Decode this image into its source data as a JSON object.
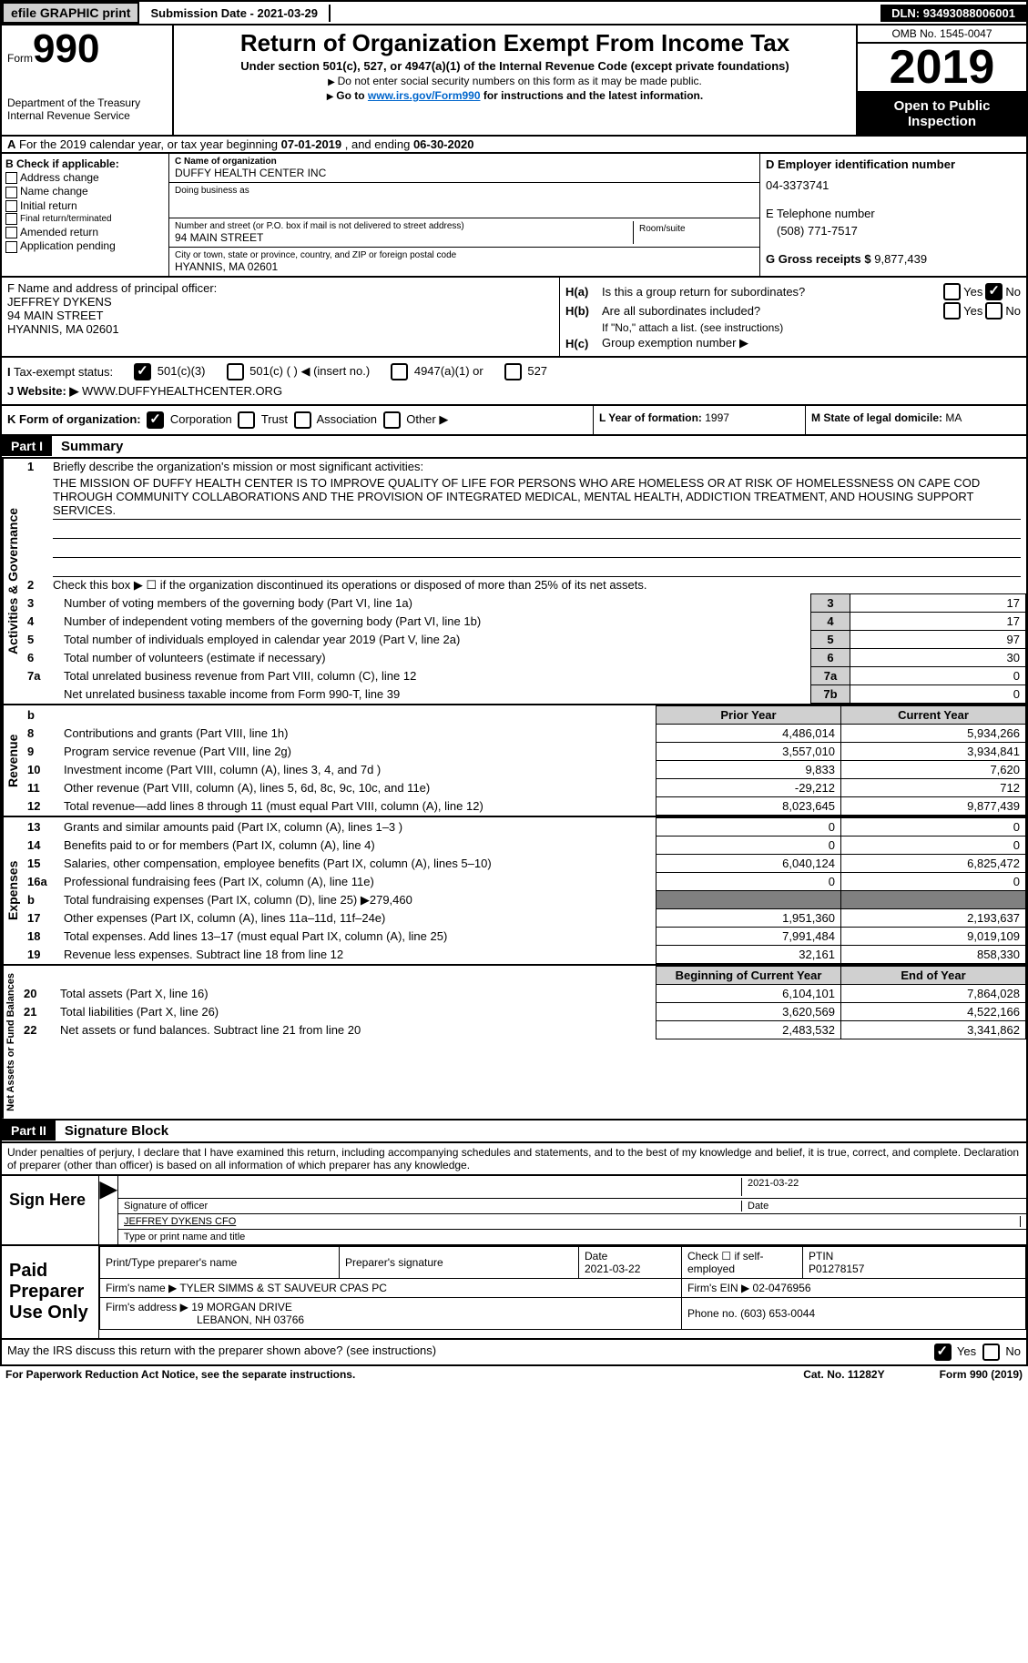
{
  "header": {
    "efile_btn": "efile GRAPHIC print",
    "submission_label": "Submission Date - ",
    "submission_date": "2021-03-29",
    "dln_label": "DLN: ",
    "dln": "93493088006001"
  },
  "form_box": {
    "form_word": "Form",
    "form_num": "990",
    "dept": "Department of the Treasury",
    "irs": "Internal Revenue Service"
  },
  "title": {
    "main": "Return of Organization Exempt From Income Tax",
    "sub": "Under section 501(c), 527, or 4947(a)(1) of the Internal Revenue Code (except private foundations)",
    "note1": "Do not enter social security numbers on this form as it may be made public.",
    "note2_pre": "Go to ",
    "note2_link": "www.irs.gov/Form990",
    "note2_post": " for instructions and the latest information."
  },
  "right_box": {
    "omb": "OMB No. 1545-0047",
    "year": "2019",
    "open": "Open to Public Inspection"
  },
  "period": {
    "text_pre": "For the 2019 calendar year, or tax year beginning ",
    "begin": "07-01-2019",
    "mid": " , and ending ",
    "end": "06-30-2020"
  },
  "col_b": {
    "header": "B Check if applicable:",
    "items": [
      "Address change",
      "Name change",
      "Initial return",
      "Final return/terminated",
      "Amended return",
      "Application pending"
    ]
  },
  "col_c": {
    "name_lbl": "C Name of organization",
    "name": "DUFFY HEALTH CENTER INC",
    "dba_lbl": "Doing business as",
    "dba": "",
    "addr_lbl": "Number and street (or P.O. box if mail is not delivered to street address)",
    "addr": "94 MAIN STREET",
    "room_lbl": "Room/suite",
    "city_lbl": "City or town, state or province, country, and ZIP or foreign postal code",
    "city": "HYANNIS, MA  02601"
  },
  "col_d": {
    "ein_lbl": "D Employer identification number",
    "ein": "04-3373741",
    "phone_lbl": "E Telephone number",
    "phone": "(508) 771-7517",
    "gross_lbl": "G Gross receipts $ ",
    "gross": "9,877,439"
  },
  "officer": {
    "lbl": "F  Name and address of principal officer:",
    "name": "JEFFREY DYKENS",
    "addr1": "94 MAIN STREET",
    "addr2": "HYANNIS, MA  02601"
  },
  "h_section": {
    "ha_lbl": "H(a)",
    "ha_text": "Is this a group return for subordinates?",
    "hb_lbl": "H(b)",
    "hb_text": "Are all subordinates included?",
    "hb_note": "If \"No,\" attach a list. (see instructions)",
    "hc_lbl": "H(c)",
    "hc_text": "Group exemption number ▶",
    "yes": "Yes",
    "no": "No"
  },
  "status": {
    "i_lbl": "I",
    "i_text": "Tax-exempt status:",
    "opts": [
      "501(c)(3)",
      "501(c) (  ) ◀ (insert no.)",
      "4947(a)(1) or",
      "527"
    ]
  },
  "website": {
    "j_lbl": "J",
    "j_text": "Website: ▶",
    "url": "WWW.DUFFYHEALTHCENTER.ORG"
  },
  "k_row": {
    "k_lbl": "K Form of organization:",
    "opts": [
      "Corporation",
      "Trust",
      "Association",
      "Other ▶"
    ],
    "l_lbl": "L Year of formation: ",
    "l_val": "1997",
    "m_lbl": "M State of legal domicile: ",
    "m_val": "MA"
  },
  "part1": {
    "hdr": "Part I",
    "title": "Summary",
    "line1_lbl": "1",
    "line1_text": "Briefly describe the organization's mission or most significant activities:",
    "mission": "THE MISSION OF DUFFY HEALTH CENTER IS TO IMPROVE QUALITY OF LIFE FOR PERSONS WHO ARE HOMELESS OR AT RISK OF HOMELESSNESS ON CAPE COD THROUGH COMMUNITY COLLABORATIONS AND THE PROVISION OF INTEGRATED MEDICAL, MENTAL HEALTH, ADDICTION TREATMENT, AND HOUSING SUPPORT SERVICES.",
    "line2_text": "Check this box ▶ ☐  if the organization discontinued its operations or disposed of more than 25% of its net assets.",
    "gov_label": "Activities & Governance",
    "rev_label": "Revenue",
    "exp_label": "Expenses",
    "net_label": "Net Assets or Fund Balances",
    "gov_lines": [
      {
        "n": "3",
        "d": "Number of voting members of the governing body (Part VI, line 1a)",
        "box": "3",
        "v": "17"
      },
      {
        "n": "4",
        "d": "Number of independent voting members of the governing body (Part VI, line 1b)",
        "box": "4",
        "v": "17"
      },
      {
        "n": "5",
        "d": "Total number of individuals employed in calendar year 2019 (Part V, line 2a)",
        "box": "5",
        "v": "97"
      },
      {
        "n": "6",
        "d": "Total number of volunteers (estimate if necessary)",
        "box": "6",
        "v": "30"
      },
      {
        "n": "7a",
        "d": "Total unrelated business revenue from Part VIII, column (C), line 12",
        "box": "7a",
        "v": "0"
      },
      {
        "n": "",
        "d": "Net unrelated business taxable income from Form 990-T, line 39",
        "box": "7b",
        "v": "0"
      }
    ],
    "col_hdrs": {
      "prior": "Prior Year",
      "current": "Current Year",
      "begin": "Beginning of Current Year",
      "end": "End of Year",
      "b": "b"
    },
    "rev_lines": [
      {
        "n": "8",
        "d": "Contributions and grants (Part VIII, line 1h)",
        "p": "4,486,014",
        "c": "5,934,266"
      },
      {
        "n": "9",
        "d": "Program service revenue (Part VIII, line 2g)",
        "p": "3,557,010",
        "c": "3,934,841"
      },
      {
        "n": "10",
        "d": "Investment income (Part VIII, column (A), lines 3, 4, and 7d )",
        "p": "9,833",
        "c": "7,620"
      },
      {
        "n": "11",
        "d": "Other revenue (Part VIII, column (A), lines 5, 6d, 8c, 9c, 10c, and 11e)",
        "p": "-29,212",
        "c": "712"
      },
      {
        "n": "12",
        "d": "Total revenue—add lines 8 through 11 (must equal Part VIII, column (A), line 12)",
        "p": "8,023,645",
        "c": "9,877,439"
      }
    ],
    "exp_lines": [
      {
        "n": "13",
        "d": "Grants and similar amounts paid (Part IX, column (A), lines 1–3 )",
        "p": "0",
        "c": "0"
      },
      {
        "n": "14",
        "d": "Benefits paid to or for members (Part IX, column (A), line 4)",
        "p": "0",
        "c": "0"
      },
      {
        "n": "15",
        "d": "Salaries, other compensation, employee benefits (Part IX, column (A), lines 5–10)",
        "p": "6,040,124",
        "c": "6,825,472"
      },
      {
        "n": "16a",
        "d": "Professional fundraising fees (Part IX, column (A), line 11e)",
        "p": "0",
        "c": "0"
      },
      {
        "n": "b",
        "d": "Total fundraising expenses (Part IX, column (D), line 25) ▶279,460",
        "p": "shade",
        "c": "shade"
      },
      {
        "n": "17",
        "d": "Other expenses (Part IX, column (A), lines 11a–11d, 11f–24e)",
        "p": "1,951,360",
        "c": "2,193,637"
      },
      {
        "n": "18",
        "d": "Total expenses. Add lines 13–17 (must equal Part IX, column (A), line 25)",
        "p": "7,991,484",
        "c": "9,019,109"
      },
      {
        "n": "19",
        "d": "Revenue less expenses. Subtract line 18 from line 12",
        "p": "32,161",
        "c": "858,330"
      }
    ],
    "net_lines": [
      {
        "n": "20",
        "d": "Total assets (Part X, line 16)",
        "p": "6,104,101",
        "c": "7,864,028"
      },
      {
        "n": "21",
        "d": "Total liabilities (Part X, line 26)",
        "p": "3,620,569",
        "c": "4,522,166"
      },
      {
        "n": "22",
        "d": "Net assets or fund balances. Subtract line 21 from line 20",
        "p": "2,483,532",
        "c": "3,341,862"
      }
    ]
  },
  "part2": {
    "hdr": "Part II",
    "title": "Signature Block",
    "perjury": "Under penalties of perjury, I declare that I have examined this return, including accompanying schedules and statements, and to the best of my knowledge and belief, it is true, correct, and complete. Declaration of preparer (other than officer) is based on all information of which preparer has any knowledge.",
    "sign_here": "Sign Here",
    "sig_officer_lbl": "Signature of officer",
    "date_lbl": "Date",
    "sig_date": "2021-03-22",
    "name_title": "JEFFREY DYKENS CFO",
    "name_title_lbl": "Type or print name and title",
    "paid_prep": "Paid Preparer Use Only",
    "prep_name_lbl": "Print/Type preparer's name",
    "prep_sig_lbl": "Preparer's signature",
    "prep_date_lbl": "Date",
    "prep_date": "2021-03-22",
    "self_emp": "Check ☐ if self-employed",
    "ptin_lbl": "PTIN",
    "ptin": "P01278157",
    "firm_name_lbl": "Firm's name   ▶ ",
    "firm_name": "TYLER SIMMS & ST SAUVEUR CPAS PC",
    "firm_ein_lbl": "Firm's EIN ▶ ",
    "firm_ein": "02-0476956",
    "firm_addr_lbl": "Firm's address ▶ ",
    "firm_addr1": "19 MORGAN DRIVE",
    "firm_addr2": "LEBANON, NH  03766",
    "firm_phone_lbl": "Phone no. ",
    "firm_phone": "(603) 653-0044",
    "discuss": "May the IRS discuss this return with the preparer shown above? (see instructions)"
  },
  "footer": {
    "paperwork": "For Paperwork Reduction Act Notice, see the separate instructions.",
    "cat": "Cat. No. 11282Y",
    "form": "Form 990 (2019)"
  }
}
